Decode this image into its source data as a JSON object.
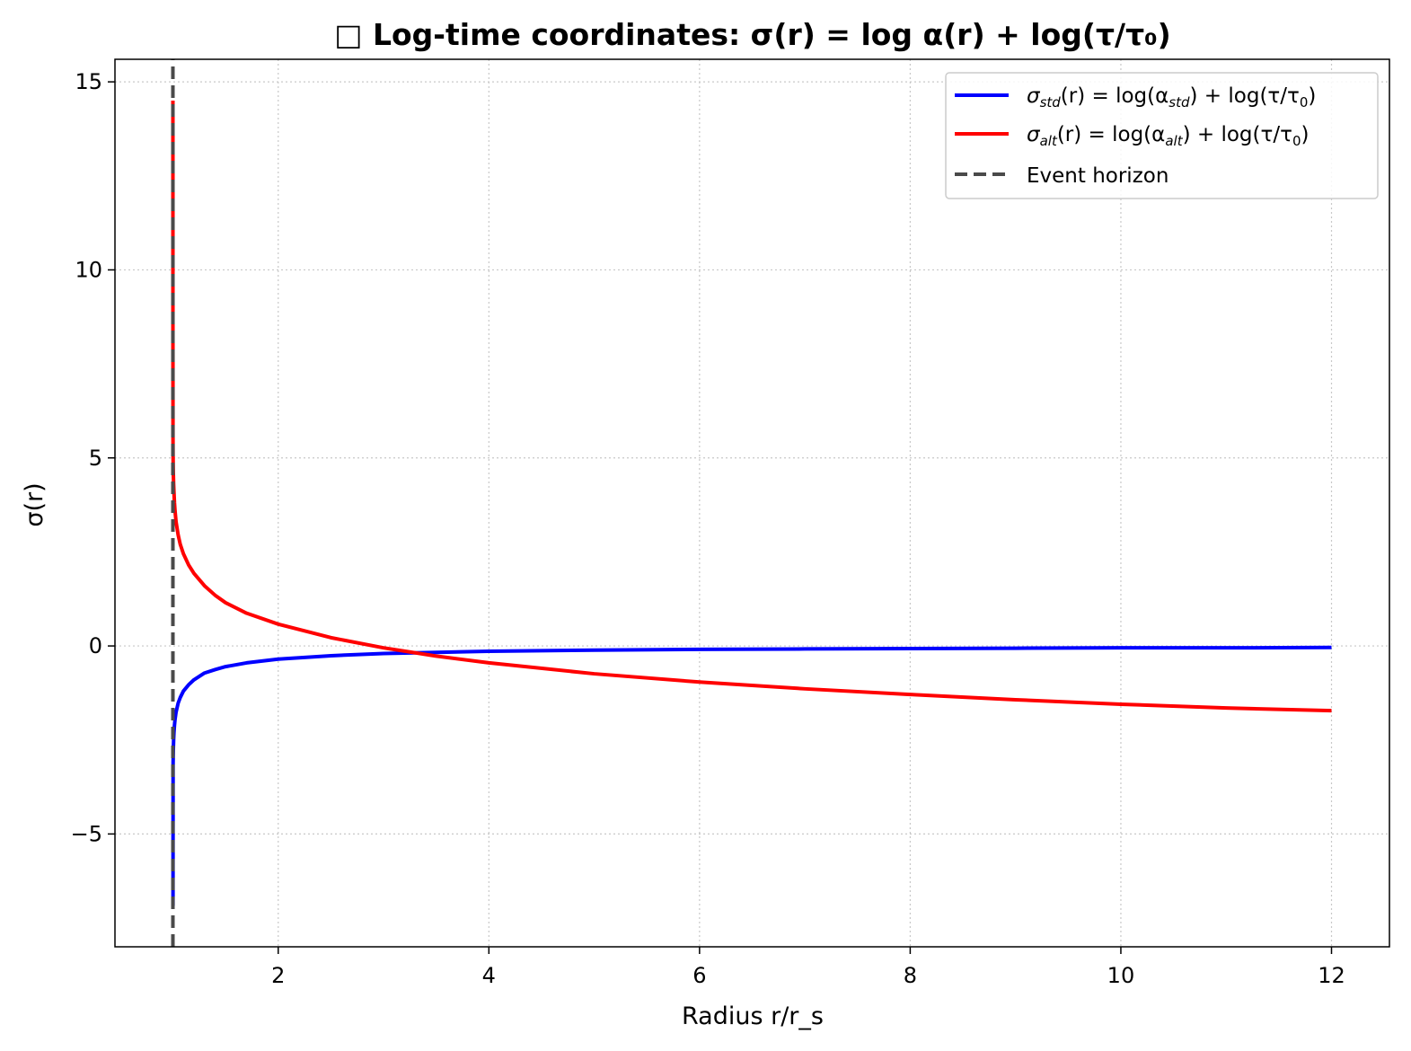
{
  "chart_data": {
    "type": "line",
    "title": "□ Log-time coordinates: σ(r) = log α(r) + log(τ/τ₀)",
    "xlabel": "Radius r/r_s",
    "ylabel": "σ(r)",
    "xlim": [
      0.45,
      12.55
    ],
    "ylim": [
      -8.0,
      15.6
    ],
    "xticks": [
      2,
      4,
      6,
      8,
      10,
      12
    ],
    "xtick_labels": [
      "2",
      "4",
      "6",
      "8",
      "10",
      "12"
    ],
    "yticks": [
      -5,
      0,
      5,
      10,
      15
    ],
    "ytick_labels": [
      "−5",
      "0",
      "5",
      "10",
      "15"
    ],
    "grid": true,
    "legend_position": "top-right",
    "series": [
      {
        "name": "σ_std(r) = log(α_std) + log(τ/τ₀)",
        "color": "#0000ff",
        "x": [
          1.001,
          1.002,
          1.004,
          1.007,
          1.01,
          1.015,
          1.02,
          1.03,
          1.05,
          1.07,
          1.1,
          1.15,
          1.2,
          1.3,
          1.4,
          1.5,
          1.7,
          2.0,
          2.5,
          3.0,
          3.5,
          4.0,
          5.0,
          6.0,
          7.0,
          8.0,
          9.0,
          10.0,
          11.0,
          12.0
        ],
        "y": [
          -6.91,
          -3.11,
          -2.77,
          -2.49,
          -2.31,
          -2.11,
          -1.96,
          -1.76,
          -1.52,
          -1.37,
          -1.2,
          -1.03,
          -0.9,
          -0.72,
          -0.63,
          -0.55,
          -0.45,
          -0.35,
          -0.26,
          -0.2,
          -0.17,
          -0.14,
          -0.11,
          -0.09,
          -0.08,
          -0.07,
          -0.06,
          -0.05,
          -0.05,
          -0.04
        ]
      },
      {
        "name": "σ_alt(r) = log(α_alt) + log(τ/τ₀)",
        "color": "#ff0000",
        "x": [
          1.0001,
          1.0003,
          1.001,
          1.002,
          1.004,
          1.007,
          1.01,
          1.015,
          1.02,
          1.03,
          1.05,
          1.07,
          1.1,
          1.15,
          1.2,
          1.3,
          1.4,
          1.5,
          1.7,
          2.0,
          2.5,
          3.0,
          3.5,
          4.0,
          5.0,
          6.0,
          7.0,
          8.0,
          9.0,
          10.0,
          11.0,
          12.0
        ],
        "y": [
          14.5,
          8.0,
          5.5,
          5.0,
          4.6,
          4.3,
          4.1,
          3.8,
          3.6,
          3.3,
          2.95,
          2.7,
          2.45,
          2.15,
          1.93,
          1.6,
          1.35,
          1.15,
          0.87,
          0.58,
          0.22,
          -0.05,
          -0.27,
          -0.45,
          -0.74,
          -0.96,
          -1.14,
          -1.29,
          -1.43,
          -1.55,
          -1.65,
          -1.72
        ]
      },
      {
        "name": "Event horizon",
        "color": "#4a4a4a",
        "x": [
          1.0,
          1.0
        ],
        "y": [
          -8.0,
          15.6
        ]
      }
    ]
  },
  "legend": {
    "items": [
      {
        "prefix": "σ",
        "sub": "std",
        "mid": "(r) = log(α",
        "sub2": "std",
        "suffix": ") + log(τ/τ",
        "sub3": "0",
        "end": ")"
      },
      {
        "prefix": "σ",
        "sub": "alt",
        "mid": "(r) = log(α",
        "sub2": "alt",
        "suffix": ") + log(τ/τ",
        "sub3": "0",
        "end": ")"
      },
      {
        "label": "Event horizon"
      }
    ]
  }
}
